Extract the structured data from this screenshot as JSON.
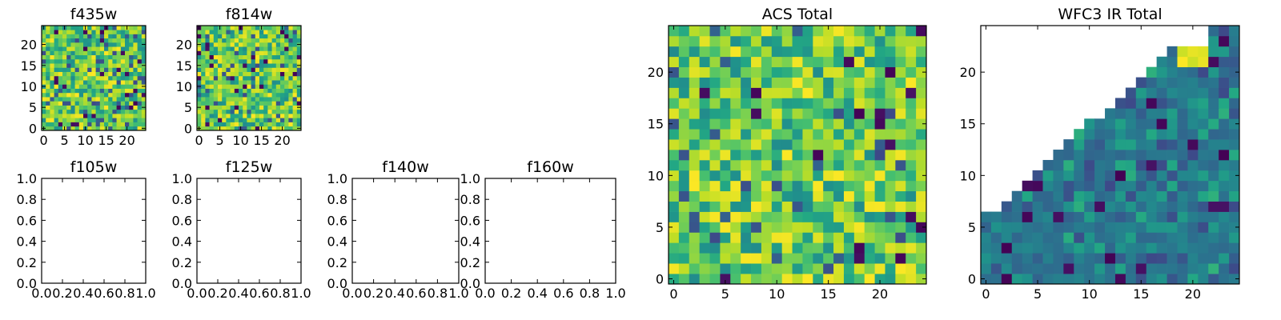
{
  "chart_data": [
    {
      "id": "f435w",
      "type": "heatmap",
      "title": "f435w",
      "grid": {
        "rows": 25,
        "cols": 25
      },
      "x_ticks": [
        0,
        5,
        10,
        15,
        20
      ],
      "y_ticks": [
        0,
        5,
        10,
        15,
        20
      ],
      "xlim": [
        -0.5,
        24.5
      ],
      "ylim": [
        -0.5,
        24.5
      ],
      "colormap": "viridis",
      "value_range": [
        0,
        1
      ],
      "pattern": "noise"
    },
    {
      "id": "f814w",
      "type": "heatmap",
      "title": "f814w",
      "grid": {
        "rows": 25,
        "cols": 25
      },
      "x_ticks": [
        0,
        5,
        10,
        15,
        20
      ],
      "y_ticks": [
        0,
        5,
        10,
        15,
        20
      ],
      "xlim": [
        -0.5,
        24.5
      ],
      "ylim": [
        -0.5,
        24.5
      ],
      "colormap": "viridis",
      "value_range": [
        0,
        1
      ],
      "pattern": "noise"
    },
    {
      "id": "f105w",
      "type": "empty",
      "title": "f105w",
      "x_ticks": [
        "0.0",
        "0.2",
        "0.4",
        "0.6",
        "0.8",
        "1.0"
      ],
      "y_ticks": [
        "0.0",
        "0.2",
        "0.4",
        "0.6",
        "0.8",
        "1.0"
      ],
      "xlim": [
        0,
        1
      ],
      "ylim": [
        0,
        1
      ]
    },
    {
      "id": "f125w",
      "type": "empty",
      "title": "f125w",
      "x_ticks": [
        "0.0",
        "0.2",
        "0.4",
        "0.6",
        "0.8",
        "1.0"
      ],
      "y_ticks": [
        "0.0",
        "0.2",
        "0.4",
        "0.6",
        "0.8",
        "1.0"
      ],
      "xlim": [
        0,
        1
      ],
      "ylim": [
        0,
        1
      ]
    },
    {
      "id": "f140w",
      "type": "empty",
      "title": "f140w",
      "x_ticks": [
        "0.0",
        "0.2",
        "0.4",
        "0.6",
        "0.8",
        "1.0"
      ],
      "y_ticks": [
        "0.0",
        "0.2",
        "0.4",
        "0.6",
        "0.8",
        "1.0"
      ],
      "xlim": [
        0,
        1
      ],
      "ylim": [
        0,
        1
      ]
    },
    {
      "id": "f160w",
      "type": "empty",
      "title": "f160w",
      "x_ticks": [
        "0.0",
        "0.2",
        "0.4",
        "0.6",
        "0.8",
        "1.0"
      ],
      "y_ticks": [
        "0.0",
        "0.2",
        "0.4",
        "0.6",
        "0.8",
        "1.0"
      ],
      "xlim": [
        0,
        1
      ],
      "ylim": [
        0,
        1
      ]
    },
    {
      "id": "acs_total",
      "type": "heatmap",
      "title": "ACS Total",
      "grid": {
        "rows": 25,
        "cols": 25
      },
      "x_ticks": [
        0,
        5,
        10,
        15,
        20
      ],
      "y_ticks": [
        0,
        5,
        10,
        15,
        20
      ],
      "xlim": [
        -0.5,
        24.5
      ],
      "ylim": [
        -0.5,
        24.5
      ],
      "colormap": "viridis",
      "value_range": [
        0,
        1
      ],
      "pattern": "noise"
    },
    {
      "id": "wfc3_ir_total",
      "type": "heatmap",
      "title": "WFC3 IR Total",
      "grid": {
        "rows": 25,
        "cols": 25
      },
      "x_ticks": [
        0,
        5,
        10,
        15,
        20
      ],
      "y_ticks": [
        0,
        5,
        10,
        15,
        20
      ],
      "xlim": [
        -0.5,
        24.5
      ],
      "ylim": [
        -0.5,
        24.5
      ],
      "colormap": "viridis",
      "value_range": [
        0,
        1
      ],
      "pattern": "wedge",
      "masked_region": "upper-left triangle (no data, white)"
    }
  ]
}
